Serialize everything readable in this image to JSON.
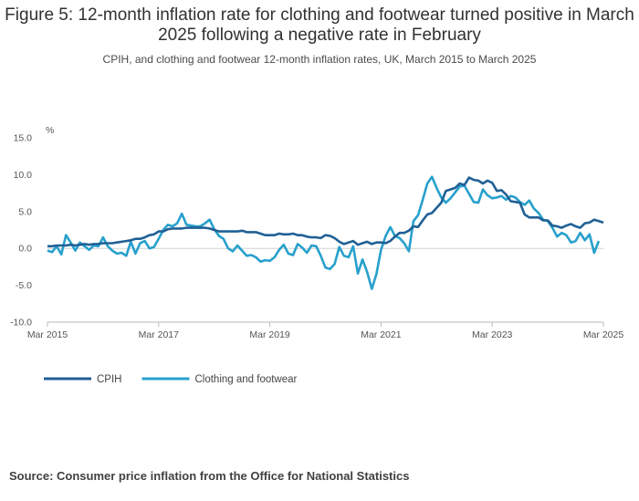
{
  "title": "Figure 5: 12-month inflation rate for clothing and footwear turned positive in March 2025 following a negative rate in February",
  "subtitle": "CPIH, and clothing and footwear 12-month inflation rates, UK, March 2015 to March 2025",
  "source": "Source: Consumer price inflation from the Office for National Statistics",
  "chart_data": {
    "type": "line",
    "title": "Figure 5: 12-month inflation rate for clothing and footwear turned positive in March 2025 following a negative rate in February",
    "ylabel": "%",
    "xlabel": "",
    "ylim": [
      -10,
      15
    ],
    "yticks": [
      -10,
      -5,
      0,
      5,
      10,
      15
    ],
    "ytick_labels": [
      "-10.0",
      "-5.0",
      "0.0",
      "5.0",
      "10.0",
      "15.0"
    ],
    "xtick_labels": [
      "Mar 2015",
      "Mar 2017",
      "Mar 2019",
      "Mar 2021",
      "Mar 2023",
      "Mar 2025"
    ],
    "x_start": "Mar 2015",
    "x_end": "Mar 2025",
    "grid": false,
    "legend_position": "bottom-left",
    "series": [
      {
        "name": "CPIH",
        "color": "#206095",
        "values": [
          0.3,
          0.3,
          0.4,
          0.4,
          0.4,
          0.5,
          0.4,
          0.5,
          0.6,
          0.5,
          0.6,
          0.6,
          0.7,
          0.7,
          0.7,
          0.8,
          0.9,
          1.0,
          1.1,
          1.3,
          1.3,
          1.5,
          1.8,
          1.9,
          2.3,
          2.3,
          2.6,
          2.7,
          2.7,
          2.7,
          2.8,
          2.8,
          2.8,
          2.8,
          2.8,
          2.7,
          2.5,
          2.3,
          2.3,
          2.3,
          2.3,
          2.3,
          2.4,
          2.2,
          2.2,
          2.2,
          2.0,
          1.8,
          1.8,
          1.8,
          2.0,
          1.9,
          1.9,
          2.0,
          1.8,
          1.8,
          1.6,
          1.5,
          1.5,
          1.4,
          1.8,
          1.7,
          1.4,
          0.9,
          0.6,
          0.8,
          1.0,
          0.5,
          0.7,
          0.9,
          0.6,
          0.8,
          0.8,
          0.7,
          1.0,
          1.6,
          2.1,
          2.1,
          2.4,
          3.0,
          2.9,
          3.8,
          4.6,
          4.8,
          5.5,
          6.2,
          7.8,
          8.0,
          8.2,
          8.8,
          8.6,
          9.6,
          9.3,
          9.2,
          8.8,
          9.2,
          8.9,
          7.8,
          7.9,
          7.3,
          6.4,
          6.3,
          6.2,
          4.6,
          4.2,
          4.2,
          4.2,
          3.8,
          3.8,
          3.1,
          3.0,
          2.8,
          3.1,
          3.3,
          3.0,
          2.8,
          3.4,
          3.5,
          3.9,
          3.7,
          3.5
        ],
        "values_note": "monthly estimates read from the chart, Mar 2015 to Mar 2025"
      },
      {
        "name": "Clothing and footwear",
        "color": "#27A0CC",
        "values": [
          -0.3,
          -0.5,
          0.3,
          -0.8,
          1.8,
          0.8,
          -0.3,
          0.8,
          0.3,
          -0.2,
          0.4,
          0.3,
          1.5,
          0.3,
          -0.3,
          -0.7,
          -0.6,
          -1.0,
          0.9,
          -0.7,
          0.7,
          1.0,
          0.0,
          0.2,
          1.3,
          2.5,
          3.2,
          3.0,
          3.4,
          4.7,
          3.2,
          3.1,
          3.0,
          3.0,
          3.4,
          3.9,
          2.6,
          1.7,
          1.3,
          0.0,
          -0.4,
          0.4,
          -0.3,
          -1.0,
          -0.9,
          -1.2,
          -1.8,
          -1.6,
          -1.7,
          -1.2,
          -0.2,
          0.5,
          -0.7,
          -0.9,
          0.6,
          0.1,
          -0.6,
          0.4,
          0.3,
          -1.0,
          -2.6,
          -2.8,
          -2.1,
          0.2,
          -1.0,
          -1.2,
          0.3,
          -3.4,
          -1.5,
          -3.2,
          -5.5,
          -3.5,
          -0.2,
          1.7,
          2.9,
          1.7,
          1.4,
          0.7,
          -0.4,
          3.7,
          4.5,
          6.6,
          8.8,
          9.7,
          8.2,
          6.9,
          6.2,
          6.8,
          7.6,
          8.4,
          8.5,
          7.4,
          6.3,
          6.2,
          8.0,
          7.2,
          6.8,
          6.9,
          7.1,
          6.6,
          7.1,
          6.9,
          6.3,
          5.9,
          6.5,
          5.4,
          4.8,
          3.9,
          3.7,
          2.8,
          1.6,
          2.1,
          1.8,
          0.8,
          1.0,
          2.1,
          1.1,
          1.9,
          -0.6,
          1.0
        ],
        "values_note": "monthly estimates read from the chart, Mar 2015 to Mar 2025"
      }
    ]
  }
}
